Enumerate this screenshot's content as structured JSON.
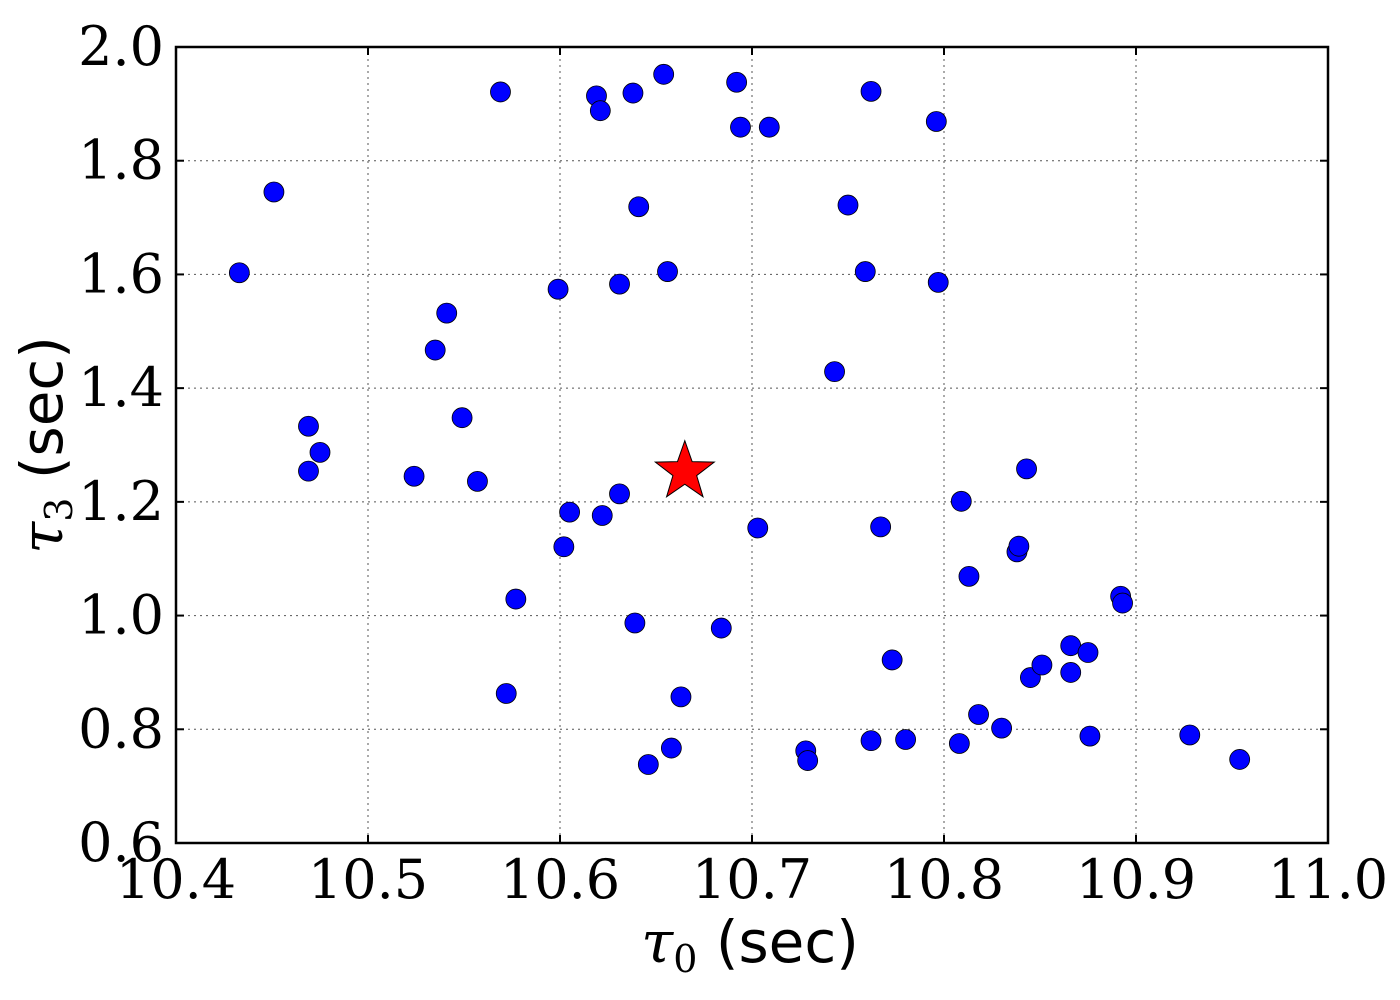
{
  "chart_data": {
    "type": "scatter",
    "xlim": [
      10.4,
      11.0
    ],
    "ylim": [
      0.6,
      2.0
    ],
    "xticks": [
      "10.4",
      "10.5",
      "10.6",
      "10.7",
      "10.8",
      "10.9",
      "11.0"
    ],
    "yticks": [
      "0.6",
      "0.8",
      "1.0",
      "1.2",
      "1.4",
      "1.6",
      "1.8",
      "2.0"
    ],
    "xlabel": {
      "symbol": "τ",
      "subscript": "0",
      "unit": " (sec)"
    },
    "ylabel": {
      "symbol": "τ",
      "subscript": "3",
      "unit": " (sec)"
    },
    "grid": true,
    "series": [
      {
        "marker": "circle",
        "color": "#0000ff",
        "points": [
          [
            10.433,
            1.603
          ],
          [
            10.451,
            1.745
          ],
          [
            10.469,
            1.333
          ],
          [
            10.469,
            1.254
          ],
          [
            10.475,
            1.287
          ],
          [
            10.524,
            1.245
          ],
          [
            10.535,
            1.467
          ],
          [
            10.541,
            1.532
          ],
          [
            10.549,
            1.348
          ],
          [
            10.557,
            1.236
          ],
          [
            10.569,
            1.921
          ],
          [
            10.572,
            0.863
          ],
          [
            10.577,
            1.029
          ],
          [
            10.599,
            1.574
          ],
          [
            10.602,
            1.121
          ],
          [
            10.605,
            1.182
          ],
          [
            10.619,
            1.914
          ],
          [
            10.621,
            1.888
          ],
          [
            10.622,
            1.176
          ],
          [
            10.631,
            1.583
          ],
          [
            10.631,
            1.214
          ],
          [
            10.638,
            1.919
          ],
          [
            10.639,
            0.987
          ],
          [
            10.641,
            1.719
          ],
          [
            10.646,
            0.738
          ],
          [
            10.654,
            1.952
          ],
          [
            10.656,
            1.605
          ],
          [
            10.658,
            0.767
          ],
          [
            10.663,
            0.857
          ],
          [
            10.684,
            0.978
          ],
          [
            10.692,
            1.938
          ],
          [
            10.694,
            1.859
          ],
          [
            10.703,
            1.154
          ],
          [
            10.709,
            1.859
          ],
          [
            10.728,
            0.762
          ],
          [
            10.729,
            0.745
          ],
          [
            10.743,
            1.429
          ],
          [
            10.75,
            1.722
          ],
          [
            10.759,
            1.605
          ],
          [
            10.762,
            1.922
          ],
          [
            10.762,
            0.78
          ],
          [
            10.767,
            1.156
          ],
          [
            10.773,
            0.922
          ],
          [
            10.78,
            0.782
          ],
          [
            10.796,
            1.869
          ],
          [
            10.797,
            1.586
          ],
          [
            10.808,
            0.775
          ],
          [
            10.809,
            1.201
          ],
          [
            10.813,
            1.069
          ],
          [
            10.818,
            0.826
          ],
          [
            10.83,
            0.802
          ],
          [
            10.838,
            1.112
          ],
          [
            10.839,
            1.122
          ],
          [
            10.843,
            1.258
          ],
          [
            10.845,
            0.891
          ],
          [
            10.851,
            0.913
          ],
          [
            10.866,
            0.947
          ],
          [
            10.866,
            0.9
          ],
          [
            10.875,
            0.935
          ],
          [
            10.876,
            0.788
          ],
          [
            10.892,
            1.034
          ],
          [
            10.893,
            1.022
          ],
          [
            10.928,
            0.79
          ],
          [
            10.954,
            0.747
          ]
        ]
      },
      {
        "marker": "star",
        "color": "#ff0000",
        "points": [
          [
            10.665,
            1.253
          ]
        ]
      }
    ]
  }
}
